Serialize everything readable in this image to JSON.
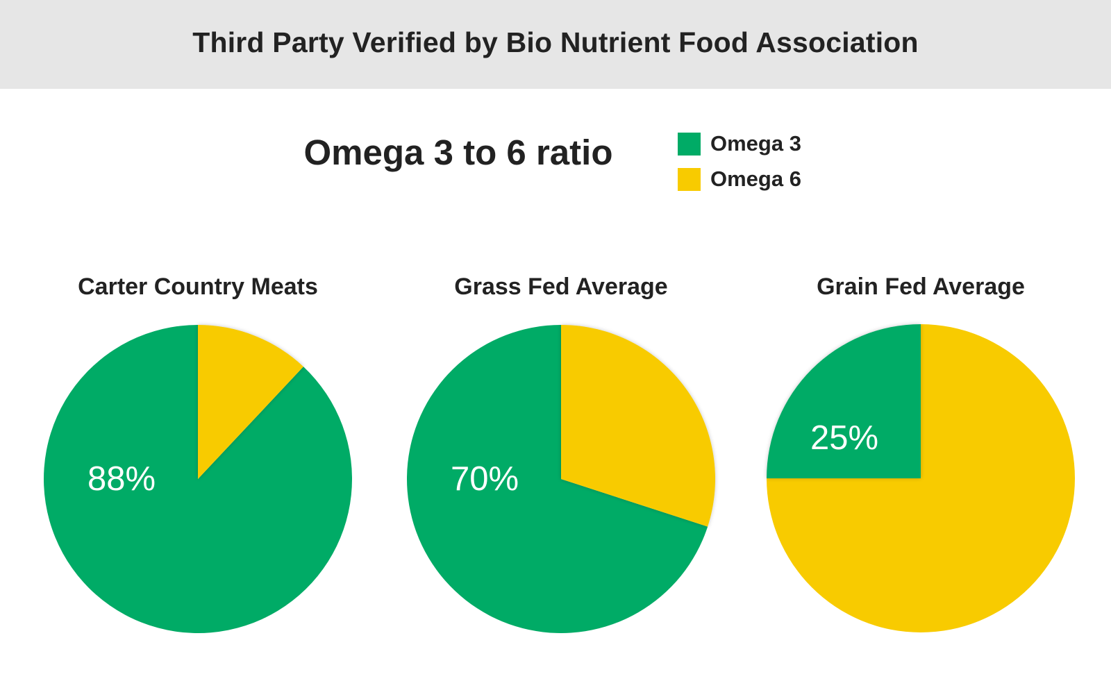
{
  "banner": {
    "title": "Third Party Verified by Bio Nutrient Food Association"
  },
  "colors": {
    "omega3": "#00ab66",
    "omega6": "#f8cb00",
    "banner_bg": "#e6e6e6"
  },
  "chart_data": {
    "type": "pie",
    "title": "Omega 3 to 6 ratio",
    "legend": [
      {
        "name": "Omega 3",
        "color": "#00ab66"
      },
      {
        "name": "Omega 6",
        "color": "#f8cb00"
      }
    ],
    "legend_placement": "top-right",
    "pies": [
      {
        "title": "Carter Country Meats",
        "omega3": 88,
        "omega6": 12,
        "label": "88%"
      },
      {
        "title": "Grass Fed Average",
        "omega3": 70,
        "omega6": 30,
        "label": "70%"
      },
      {
        "title": "Grain Fed Average",
        "omega3": 25,
        "omega6": 75,
        "label": "25%"
      }
    ]
  }
}
